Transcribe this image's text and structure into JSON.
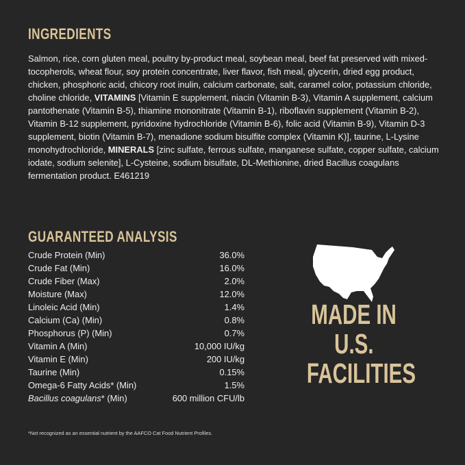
{
  "ingredients": {
    "heading": "INGREDIENTS",
    "text_1": "Salmon, rice, corn gluten meal, poultry by-product meal, soybean meal, beef fat preserved with mixed-tocopherols, wheat flour, soy protein concentrate, liver flavor, fish meal, glycerin, dried egg product, chicken, phosphoric acid, chicory root inulin, calcium carbonate, salt, caramel color, potassium chloride, choline chloride, ",
    "bold_1": "VITAMINS",
    "text_2": " [Vitamin E supplement, niacin (Vitamin B-3), Vitamin A supplement, calcium pantothenate (Vitamin B-5), thiamine mononitrate (Vitamin B-1), riboflavin supplement (Vitamin B-2), Vitamin B-12 supplement, pyridoxine hydrochloride (Vitamin B-6), folic acid (Vitamin B-9), Vitamin D-3 supplement, biotin (Vitamin B-7), menadione sodium bisulfite complex (Vitamin K)], taurine, L-Lysine monohydrochloride, ",
    "bold_2": "MINERALS",
    "text_3": " [zinc sulfate, ferrous sulfate, manganese sulfate, copper sulfate, calcium iodate, sodium selenite], L-Cysteine, sodium bisulfate, DL-Methionine, dried Bacillus coagulans fermentation product. E461219"
  },
  "analysis": {
    "heading": "GUARANTEED ANALYSIS",
    "rows": [
      {
        "label": "Crude Protein (Min)",
        "value": "36.0%"
      },
      {
        "label": "Crude Fat (Min)",
        "value": "16.0%"
      },
      {
        "label": "Crude Fiber (Max)",
        "value": "2.0%"
      },
      {
        "label": "Moisture (Max)",
        "value": "12.0%"
      },
      {
        "label": "Linoleic Acid (Min)",
        "value": "1.4%"
      },
      {
        "label": "Calcium (Ca) (Min)",
        "value": "0.8%"
      },
      {
        "label": "Phosphorus (P) (Min)",
        "value": "0.7%"
      },
      {
        "label": "Vitamin A (Min)",
        "value": "10,000 IU/kg"
      },
      {
        "label": "Vitamin E (Min)",
        "value": "200 IU/kg"
      },
      {
        "label": "Taurine (Min)",
        "value": "0.15%"
      },
      {
        "label": "Omega-6 Fatty Acids* (Min)",
        "value": "1.5%"
      }
    ],
    "last_row": {
      "label_italic": "Bacillus coagulans",
      "label_rest": "* (Min)",
      "value": "600 million CFU/lb"
    },
    "footnote": "*Not recognized as an essential nutrient by the AAFCO Cat Food Nutrient Profiles."
  },
  "badge": {
    "icon": "usa-map-icon",
    "lines": [
      "MADE IN",
      "U.S.",
      "FACILITIES"
    ]
  },
  "colors": {
    "background": "#262626",
    "accent": "#d9c49a",
    "text": "#efefef"
  }
}
